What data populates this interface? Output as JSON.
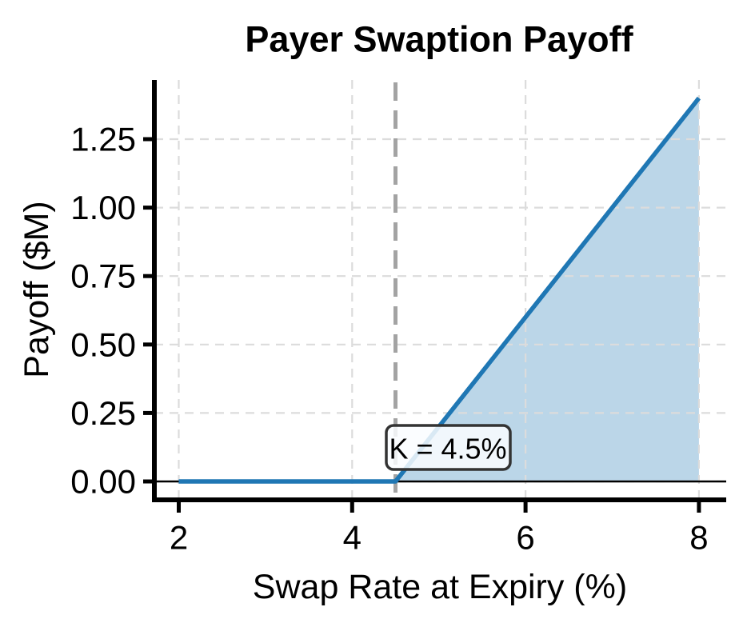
{
  "title": "Payer Swaption Payoff",
  "chart_data": {
    "type": "line",
    "title": "Payer Swaption Payoff",
    "xlabel": "Swap Rate at Expiry (%)",
    "ylabel": "Payoff ($M)",
    "points": [
      {
        "x": 2.0,
        "y": 0.0
      },
      {
        "x": 4.5,
        "y": 0.0
      },
      {
        "x": 8.0,
        "y": 1.4
      }
    ],
    "strike": {
      "x": 4.5,
      "label": "K = 4.5%"
    },
    "fill_between": {
      "from_x": 4.5,
      "to_x": 8.0,
      "baseline": 0.0
    },
    "xticks": [
      2,
      4,
      6,
      8
    ],
    "yticks": [
      {
        "value": 0.0,
        "label": "0.00"
      },
      {
        "value": 0.25,
        "label": "0.25"
      },
      {
        "value": 0.5,
        "label": "0.50"
      },
      {
        "value": 0.75,
        "label": "0.75"
      },
      {
        "value": 1.0,
        "label": "1.00"
      },
      {
        "value": 1.25,
        "label": "1.25"
      }
    ],
    "xlim": [
      1.72,
      8.31
    ],
    "ylim": [
      -0.07,
      1.47
    ],
    "grid": true,
    "grid_style": "dashed",
    "legend": false,
    "colors": {
      "line": "#1f77b4",
      "fill": "#1f77b4",
      "fill_opacity": 0.3,
      "strike_line": "#a3a3a3",
      "grid": "#dcdcdc",
      "axis": "#000000",
      "zero_line": "#000000",
      "text": "#000000",
      "annotation_border": "#333333",
      "annotation_bg": "#fafdff"
    }
  }
}
